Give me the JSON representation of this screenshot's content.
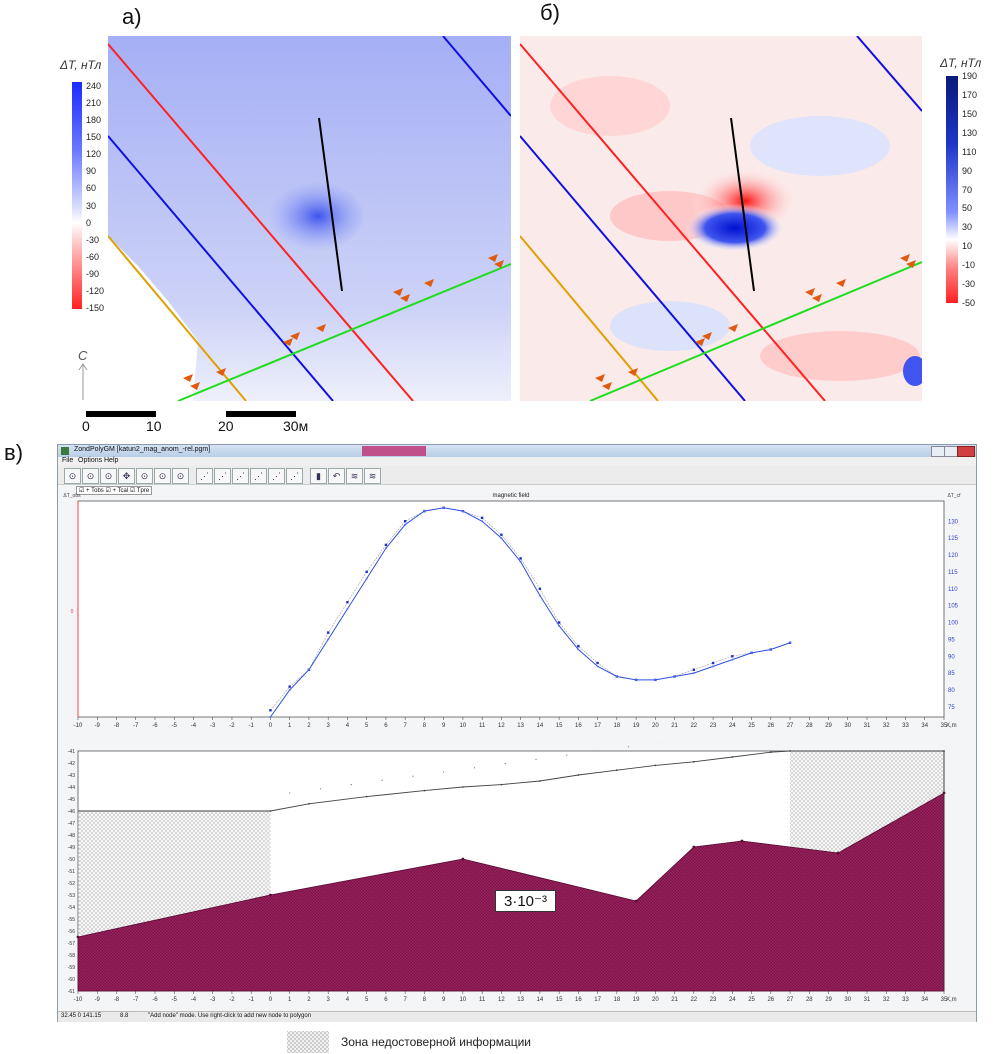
{
  "panels": {
    "a": "а)",
    "b": "б)",
    "c": "в)"
  },
  "scale_a": {
    "title": "ΔT, нТл",
    "ticks": [
      "240",
      "210",
      "180",
      "150",
      "120",
      "90",
      "60",
      "30",
      "0",
      "-30",
      "-60",
      "-90",
      "-120",
      "-150"
    ]
  },
  "scale_b": {
    "title": "ΔT, нТл",
    "ticks": [
      "190",
      "170",
      "150",
      "130",
      "110",
      "90",
      "70",
      "50",
      "30",
      "10",
      "-10",
      "-30",
      "-50"
    ]
  },
  "north": "С",
  "scalebar": {
    "labels": [
      "0",
      "10",
      "20",
      "30м"
    ]
  },
  "app": {
    "title": "ZondPolyGM [katun2_mag_anom_-rel.pgm]",
    "menu": [
      "File",
      "Options",
      "Help"
    ],
    "toolbar_icons": [
      "zoom-icon",
      "zoom-icon",
      "zoom-icon",
      "move-icon",
      "zoom-icon",
      "zoom-icon",
      "zoom-icon",
      "node-icon",
      "node-icon",
      "node-icon",
      "node-icon",
      "node-icon",
      "node-icon",
      "save-icon",
      "undo-icon",
      "calc-icon",
      "calc-icon"
    ],
    "checkbox_row": "☑ + Tobs ☑ + Tcal ☑ Tpre",
    "chart_title": "magnetic field",
    "left_axis_label": "ΔT_obs",
    "left_axis_zero": "0",
    "right_axis_label": "ΔT_cf",
    "x_unit": "X,m",
    "section_annotation": "3·10⁻³",
    "status": {
      "coords": "32.45 0 141.15",
      "value": "8.8",
      "message": "\"Add node\" mode. Use right-click to add new node to polygon"
    }
  },
  "legend": "Зона недостоверной информации",
  "chart_data": [
    {
      "type": "line",
      "title": "magnetic field",
      "xlim": [
        -10,
        35
      ],
      "ylim": [
        72,
        136
      ],
      "y_ticks": [
        75,
        80,
        85,
        90,
        95,
        100,
        105,
        110,
        115,
        120,
        125,
        130
      ],
      "series": [
        {
          "values_x": [
            0,
            1,
            2,
            3,
            4,
            5,
            6,
            7,
            8,
            9,
            10,
            11,
            12,
            13,
            14,
            15,
            16,
            17,
            18,
            19,
            20,
            21,
            22,
            23,
            24,
            25,
            26,
            27
          ],
          "values": [
            72,
            80,
            86,
            95,
            104,
            113,
            122,
            129,
            133,
            134,
            133,
            130,
            125,
            118,
            108,
            99,
            92,
            87,
            84,
            83,
            83,
            84,
            85,
            87,
            89,
            91,
            92,
            94
          ]
        },
        {
          "values_x": [
            0,
            1,
            2,
            3,
            4,
            5,
            6,
            7,
            8,
            9,
            10,
            11,
            12,
            13,
            14,
            15,
            16,
            17,
            18,
            19,
            20,
            21,
            22,
            23,
            24,
            25,
            26,
            27
          ],
          "values": [
            74,
            81,
            86,
            97,
            106,
            115,
            123,
            130,
            133,
            134,
            133,
            131,
            126,
            119,
            110,
            100,
            93,
            88,
            84,
            83,
            83,
            84,
            86,
            88,
            90,
            91,
            92,
            94
          ]
        }
      ]
    },
    {
      "type": "area",
      "xlim": [
        -10,
        35
      ],
      "ylim": [
        -61,
        -41
      ],
      "y_ticks": [
        -41,
        -42,
        -43,
        -44,
        -45,
        -46,
        -47,
        -48,
        -49,
        -50,
        -51,
        -52,
        -53,
        -54,
        -55,
        -56,
        -57,
        -58,
        -59,
        -60,
        -61
      ],
      "surface": {
        "x": [
          0,
          2,
          5,
          8,
          10,
          12,
          14,
          16,
          18,
          20,
          22,
          24,
          26,
          27,
          35
        ],
        "y": [
          -46,
          -45.4,
          -44.8,
          -44.3,
          -44.0,
          -43.8,
          -43.5,
          -43.0,
          -42.6,
          -42.2,
          -41.9,
          -41.5,
          -41.1,
          -41.0,
          -41.0
        ]
      },
      "body": {
        "x": [
          -10,
          0,
          10,
          19,
          22,
          24.5,
          29.5,
          35
        ],
        "y": [
          -56.5,
          -53,
          -50,
          -53.5,
          -49,
          -48.5,
          -49.5,
          -44.5
        ]
      }
    }
  ]
}
